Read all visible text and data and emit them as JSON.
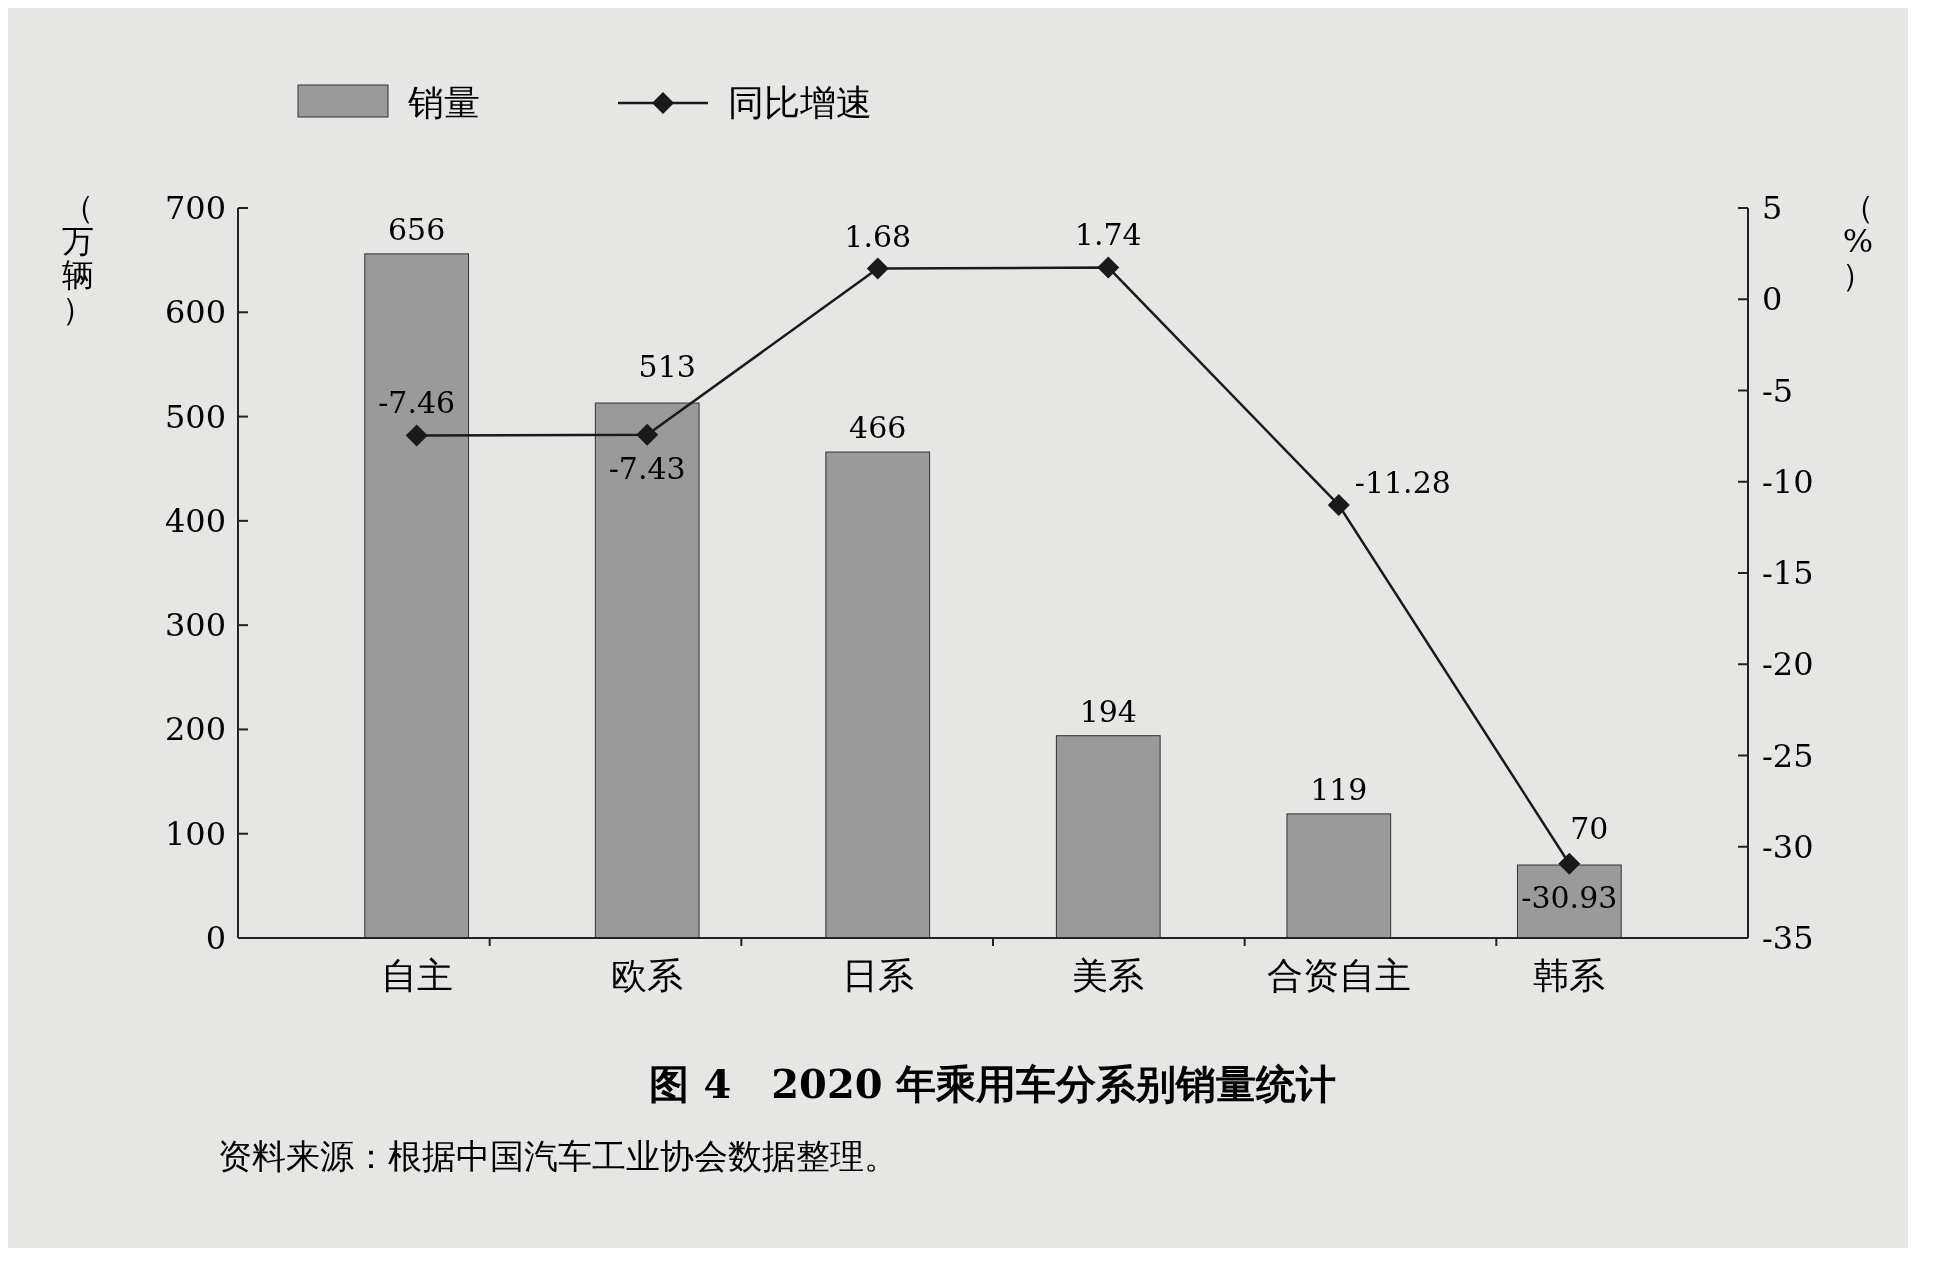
{
  "chart_data": {
    "type": "bar",
    "title": "图 4　2020 年乘用车分系别销量统计",
    "annotations": [
      "资料来源：根据中国汽车工业协会数据整理。"
    ],
    "ylabel": "（万辆）",
    "y2label": "（%）",
    "categories": [
      "自主",
      "欧系",
      "日系",
      "美系",
      "合资自主",
      "韩系"
    ],
    "series": [
      {
        "name": "销量",
        "color": "#9a9a9a",
        "values": [
          656,
          513,
          466,
          194,
          119,
          70
        ]
      },
      {
        "name": "同比增速",
        "type": "line",
        "axis": "y2",
        "color": "#1a1a1a",
        "marker": "diamond",
        "values": [
          -7.46,
          -7.43,
          1.68,
          1.74,
          -11.28,
          -30.93
        ]
      }
    ],
    "ylim": [
      0,
      700
    ],
    "yticks": [
      0,
      100,
      200,
      300,
      400,
      500,
      600,
      700
    ],
    "y2lim": [
      -35,
      5
    ],
    "y2ticks": [
      -35,
      -30,
      -25,
      -20,
      -15,
      -10,
      -5,
      0,
      5
    ],
    "data_labels": true,
    "legend": "top left",
    "grid": false
  }
}
